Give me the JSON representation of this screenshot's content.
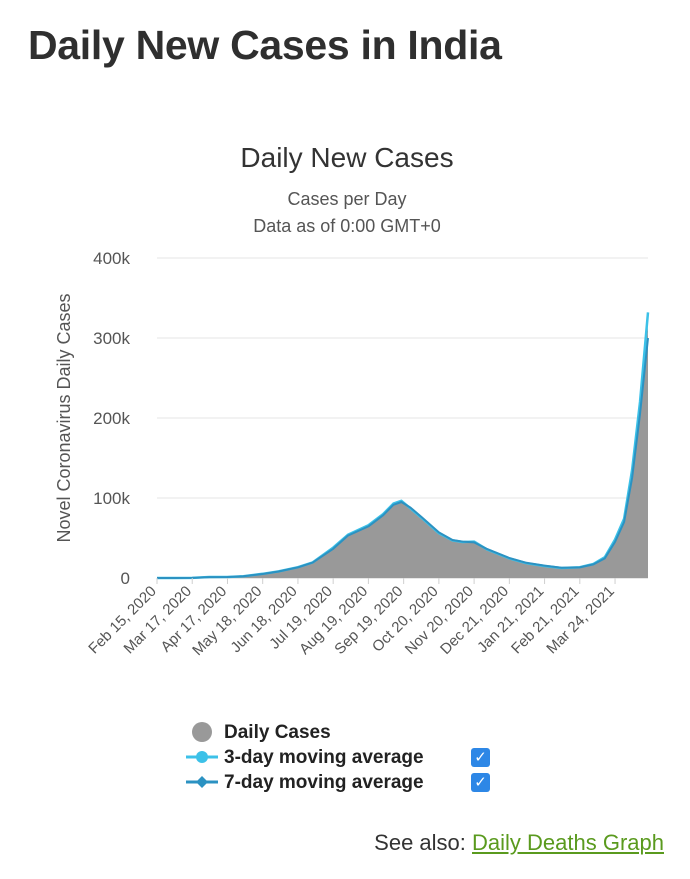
{
  "page": {
    "heading": "Daily New Cases in India",
    "see_also_prefix": "See also: ",
    "see_also_link": "Daily Deaths Graph"
  },
  "chart_data": {
    "type": "area",
    "title": "Daily New Cases",
    "subtitle": "Cases per Day",
    "subtitle2": "Data as of 0:00 GMT+0",
    "ylabel": "Novel Coronavirus Daily Cases",
    "xlabel": "",
    "ylim": [
      0,
      400000
    ],
    "yticks": [
      0,
      100000,
      200000,
      300000,
      400000
    ],
    "ytick_labels": [
      "0",
      "100k",
      "200k",
      "300k",
      "400k"
    ],
    "x_range": [
      "2020-02-15",
      "2021-04-22"
    ],
    "xticks": [
      "2020-02-15",
      "2020-03-17",
      "2020-04-17",
      "2020-05-18",
      "2020-06-18",
      "2020-07-19",
      "2020-08-19",
      "2020-09-19",
      "2020-10-20",
      "2020-11-20",
      "2020-12-21",
      "2021-01-21",
      "2021-02-21",
      "2021-03-24"
    ],
    "xtick_labels": [
      "Feb 15, 2020",
      "Mar 17, 2020",
      "Apr 17, 2020",
      "May 18, 2020",
      "Jun 18, 2020",
      "Jul 19, 2020",
      "Aug 19, 2020",
      "Sep 19, 2020",
      "Oct 20, 2020",
      "Nov 20, 2020",
      "Dec 21, 2020",
      "Jan 21, 2021",
      "Feb 21, 2021",
      "Mar 24, 2021"
    ],
    "grid": true,
    "legend_position": "bottom",
    "series": [
      {
        "name": "Daily Cases",
        "color": "#999999",
        "x": [
          "2020-02-15",
          "2020-03-01",
          "2020-03-17",
          "2020-04-01",
          "2020-04-17",
          "2020-05-01",
          "2020-05-18",
          "2020-06-01",
          "2020-06-18",
          "2020-07-01",
          "2020-07-19",
          "2020-08-01",
          "2020-08-19",
          "2020-09-01",
          "2020-09-10",
          "2020-09-17",
          "2020-09-25",
          "2020-10-05",
          "2020-10-20",
          "2020-11-01",
          "2020-11-10",
          "2020-11-20",
          "2020-12-01",
          "2020-12-21",
          "2021-01-05",
          "2021-01-21",
          "2021-02-05",
          "2021-02-21",
          "2021-03-05",
          "2021-03-15",
          "2021-03-24",
          "2021-04-01",
          "2021-04-08",
          "2021-04-15",
          "2021-04-22"
        ],
        "values": [
          0,
          0,
          50,
          1500,
          1000,
          2000,
          5000,
          8000,
          13000,
          19000,
          37000,
          55000,
          65000,
          78000,
          92000,
          96000,
          86000,
          74000,
          55000,
          46000,
          44000,
          45000,
          35000,
          24000,
          18000,
          15000,
          12000,
          13000,
          17000,
          25000,
          47000,
          72000,
          130000,
          210000,
          315000
        ]
      },
      {
        "name": "3-day moving average",
        "color": "#3cc1e8",
        "x": [
          "2020-02-15",
          "2020-03-01",
          "2020-03-17",
          "2020-04-01",
          "2020-04-17",
          "2020-05-01",
          "2020-05-18",
          "2020-06-01",
          "2020-06-18",
          "2020-07-01",
          "2020-07-19",
          "2020-08-01",
          "2020-08-19",
          "2020-09-01",
          "2020-09-10",
          "2020-09-17",
          "2020-09-25",
          "2020-10-05",
          "2020-10-20",
          "2020-11-01",
          "2020-11-10",
          "2020-11-20",
          "2020-12-01",
          "2020-12-21",
          "2021-01-05",
          "2021-01-21",
          "2021-02-05",
          "2021-02-21",
          "2021-03-05",
          "2021-03-15",
          "2021-03-24",
          "2021-04-01",
          "2021-04-08",
          "2021-04-15",
          "2021-04-22"
        ],
        "values": [
          0,
          0,
          100,
          1200,
          1200,
          2200,
          5200,
          8300,
          13500,
          19500,
          38000,
          54000,
          66000,
          80000,
          93000,
          96500,
          87000,
          75000,
          56000,
          47000,
          45000,
          45500,
          36000,
          24500,
          18500,
          15000,
          12500,
          13500,
          17500,
          26000,
          48000,
          74000,
          135000,
          220000,
          332000
        ]
      },
      {
        "name": "7-day moving average",
        "color": "#2b92c2",
        "x": [
          "2020-02-15",
          "2020-03-01",
          "2020-03-17",
          "2020-04-01",
          "2020-04-17",
          "2020-05-01",
          "2020-05-18",
          "2020-06-01",
          "2020-06-18",
          "2020-07-01",
          "2020-07-19",
          "2020-08-01",
          "2020-08-19",
          "2020-09-01",
          "2020-09-10",
          "2020-09-17",
          "2020-09-25",
          "2020-10-05",
          "2020-10-20",
          "2020-11-01",
          "2020-11-10",
          "2020-11-20",
          "2020-12-01",
          "2020-12-21",
          "2021-01-05",
          "2021-01-21",
          "2021-02-05",
          "2021-02-21",
          "2021-03-05",
          "2021-03-15",
          "2021-03-24",
          "2021-04-01",
          "2021-04-08",
          "2021-04-15",
          "2021-04-22"
        ],
        "values": [
          0,
          0,
          80,
          1100,
          1300,
          2100,
          5000,
          8100,
          13200,
          19200,
          36500,
          53000,
          64500,
          78500,
          91500,
          95000,
          88000,
          76000,
          57000,
          47500,
          45500,
          44500,
          36500,
          25000,
          19000,
          15500,
          12800,
          13200,
          17000,
          24500,
          45000,
          70000,
          125000,
          205000,
          300000
        ]
      }
    ]
  }
}
